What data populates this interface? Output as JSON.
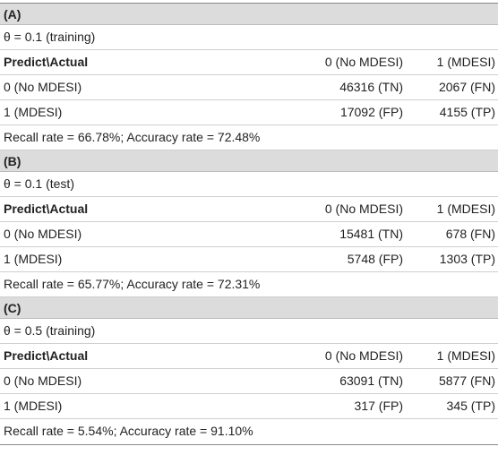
{
  "sections": [
    {
      "label": "(A)",
      "theta": "θ = 0.1 (training)",
      "header": [
        "Predict\\Actual",
        "0 (No MDESI)",
        "1 (MDESI)"
      ],
      "rows": [
        [
          "0 (No MDESI)",
          "46316 (TN)",
          "2067 (FN)"
        ],
        [
          "1 (MDESI)",
          "17092 (FP)",
          "4155 (TP)"
        ]
      ],
      "summary": "Recall rate = 66.78%; Accuracy rate = 72.48%"
    },
    {
      "label": "(B)",
      "theta": "θ = 0.1 (test)",
      "header": [
        "Predict\\Actual",
        "0 (No MDESI)",
        "1 (MDESI)"
      ],
      "rows": [
        [
          "0 (No MDESI)",
          "15481 (TN)",
          "678 (FN)"
        ],
        [
          "1 (MDESI)",
          "5748 (FP)",
          "1303 (TP)"
        ]
      ],
      "summary": "Recall rate = 65.77%; Accuracy rate = 72.31%"
    },
    {
      "label": "(C)",
      "theta": "θ = 0.5 (training)",
      "header": [
        "Predict\\Actual",
        "0 (No MDESI)",
        "1 (MDESI)"
      ],
      "rows": [
        [
          "0 (No MDESI)",
          "63091 (TN)",
          "5877 (FN)"
        ],
        [
          "1 (MDESI)",
          "317 (FP)",
          "345 (TP)"
        ]
      ],
      "summary": "Recall rate = 5.54%; Accuracy rate = 91.10%"
    }
  ]
}
